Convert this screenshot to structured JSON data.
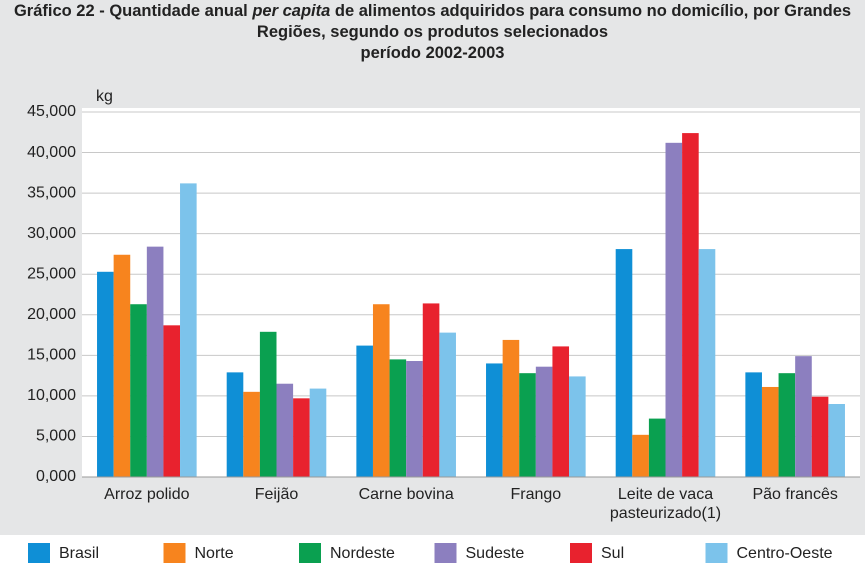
{
  "chart_data": {
    "type": "bar",
    "title": [
      "Gráfico 22 -  Quantidade anual ",
      "per capita",
      " de alimentos adquiridos para consumo no domicílio, por Grandes Regiões, segundo os produtos selecionados"
    ],
    "subtitle": "período 2002-2003",
    "y_label": "kg",
    "categories": [
      "Arroz polido",
      "Feijão",
      "Carne bovina",
      "Frango",
      "Leite de vaca pasteurizado(1)",
      "Pão francês"
    ],
    "series": [
      {
        "name": "Brasil",
        "color": "#0f8fd6",
        "values": [
          25.3,
          12.9,
          16.2,
          14.0,
          28.1,
          12.9
        ]
      },
      {
        "name": "Norte",
        "color": "#f7841e",
        "values": [
          27.4,
          10.5,
          21.3,
          16.9,
          5.2,
          11.1
        ]
      },
      {
        "name": "Nordeste",
        "color": "#0aa050",
        "values": [
          21.3,
          17.9,
          14.5,
          12.8,
          7.2,
          12.8
        ]
      },
      {
        "name": "Sudeste",
        "color": "#8c7fbf",
        "values": [
          28.4,
          11.5,
          14.3,
          13.6,
          41.2,
          14.9
        ]
      },
      {
        "name": "Sul",
        "color": "#e8222e",
        "values": [
          18.7,
          9.7,
          21.4,
          16.1,
          42.4,
          9.9
        ]
      },
      {
        "name": "Centro-Oeste",
        "color": "#7cc3eb",
        "values": [
          36.2,
          10.9,
          17.8,
          12.4,
          28.1,
          9.0
        ]
      }
    ],
    "ylim": [
      0,
      45
    ],
    "yticks": [
      {
        "value": 0,
        "label": "0,000"
      },
      {
        "value": 5,
        "label": "5,000"
      },
      {
        "value": 10,
        "label": "10,000"
      },
      {
        "value": 15,
        "label": "15,000"
      },
      {
        "value": 20,
        "label": "20,000"
      },
      {
        "value": 25,
        "label": "25,000"
      },
      {
        "value": 30,
        "label": "30,000"
      },
      {
        "value": 35,
        "label": "35,000"
      },
      {
        "value": 40,
        "label": "40,000"
      },
      {
        "value": 45,
        "label": "45,000"
      }
    ],
    "grid": true,
    "legend": "bottom"
  }
}
